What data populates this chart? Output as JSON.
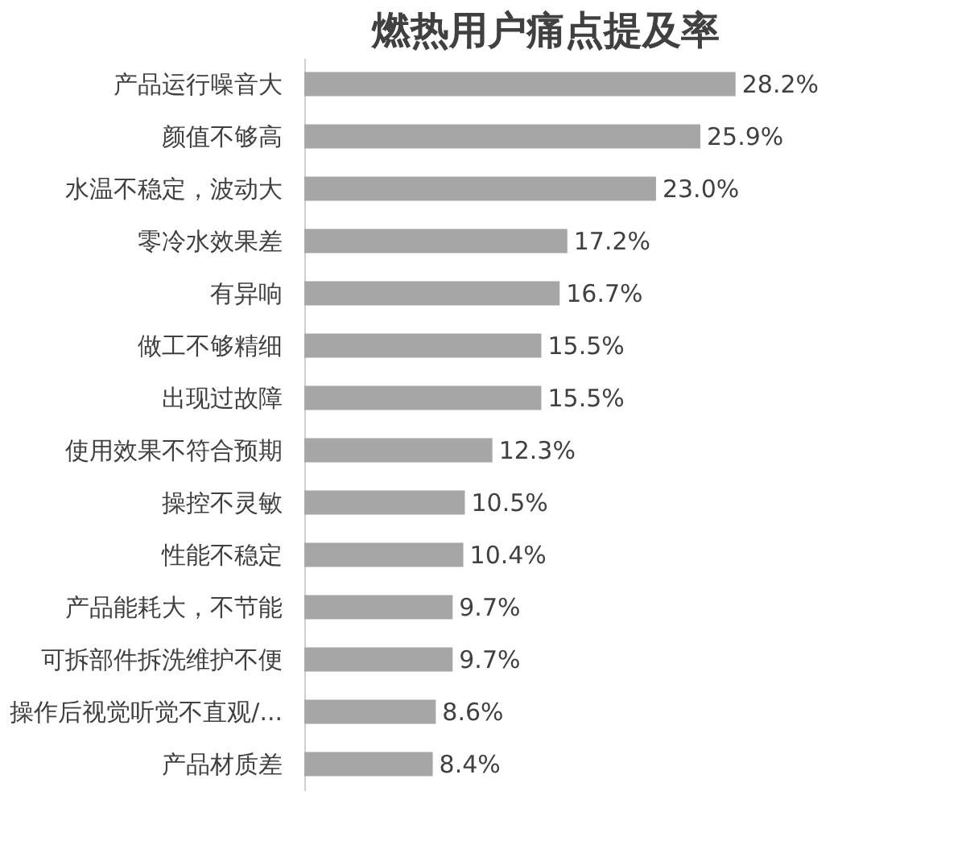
{
  "chart_data": {
    "type": "bar",
    "orientation": "horizontal",
    "title": "燃热用户痛点提及率",
    "categories": [
      "产品运行噪音大",
      "颜值不够高",
      "水温不稳定，波动大",
      "零冷水效果差",
      "有异响",
      "做工不够精细",
      "出现过故障",
      "使用效果不符合预期",
      "操控不灵敏",
      "性能不稳定",
      "产品能耗大，不节能",
      "可拆部件拆洗维护不便",
      "操作后视觉听觉不直观/...",
      "产品材质差"
    ],
    "values": [
      28.2,
      25.9,
      23.0,
      17.2,
      16.7,
      15.5,
      15.5,
      12.3,
      10.5,
      10.4,
      9.7,
      9.7,
      8.6,
      8.4
    ],
    "value_labels": [
      "28.2%",
      "25.9%",
      "23.0%",
      "17.2%",
      "16.7%",
      "15.5%",
      "15.5%",
      "12.3%",
      "10.5%",
      "10.4%",
      "9.7%",
      "9.7%",
      "8.6%",
      "8.4%"
    ],
    "color": "#a6a6a6",
    "grid": false
  }
}
